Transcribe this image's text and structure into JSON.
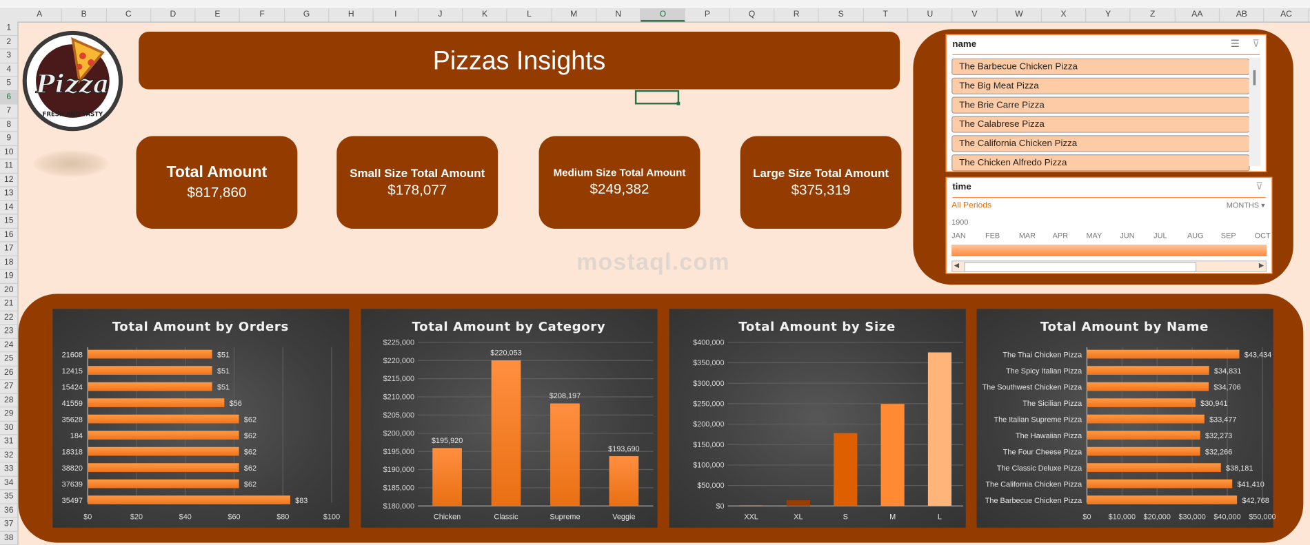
{
  "sheet": {
    "columns": [
      "A",
      "B",
      "C",
      "D",
      "E",
      "F",
      "G",
      "H",
      "I",
      "J",
      "K",
      "L",
      "M",
      "N",
      "O",
      "P",
      "Q",
      "R",
      "S",
      "T",
      "U",
      "V",
      "W",
      "X",
      "Y",
      "Z",
      "AA",
      "AB",
      "AC"
    ],
    "selected_column": "O",
    "rows": [
      1,
      2,
      3,
      4,
      5,
      6,
      7,
      8,
      9,
      10,
      11,
      12,
      13,
      14,
      15,
      16,
      17,
      18,
      19,
      20,
      21,
      22,
      23,
      24,
      25,
      26,
      27,
      28,
      29,
      30,
      31,
      32,
      33,
      34,
      35,
      36,
      37,
      38
    ],
    "selected_row": 6,
    "background_color": "#fee6d6",
    "accent_color": "#943c00"
  },
  "logo": {
    "text": "Pizza",
    "tagline": "FRESH AND TASTY"
  },
  "header": {
    "title": "Pizzas Insights"
  },
  "kpis": [
    {
      "label": "Total Amount",
      "value": "$817,860"
    },
    {
      "label": "Small Size Total Amount",
      "value": "$178,077"
    },
    {
      "label": "Medium Size Total Amount",
      "value": "$249,382"
    },
    {
      "label": "Large Size Total Amount",
      "value": "$375,319"
    }
  ],
  "slicers": {
    "name": {
      "title": "name",
      "multiselect_icon": "multi-select-icon",
      "clear_icon": "clear-filter-icon",
      "items": [
        "The Barbecue Chicken Pizza",
        "The Big Meat Pizza",
        "The Brie Carre Pizza",
        "The Calabrese Pizza",
        "The California Chicken Pizza",
        "The Chicken Alfredo Pizza"
      ]
    },
    "time": {
      "title": "time",
      "clear_icon": "clear-filter-icon",
      "period_label": "All Periods",
      "level": "MONTHS",
      "year": "1900",
      "months": [
        "JAN",
        "FEB",
        "MAR",
        "APR",
        "MAY",
        "JUN",
        "JUL",
        "AUG",
        "SEP",
        "OCT"
      ]
    }
  },
  "watermark": "mostaql.com",
  "chart_data": [
    {
      "type": "bar",
      "orientation": "horizontal",
      "title": "Total Amount by Orders",
      "categories": [
        "21608",
        "12415",
        "15424",
        "41559",
        "35628",
        "184",
        "18318",
        "38820",
        "37639",
        "35497"
      ],
      "values": [
        51,
        51,
        51,
        56,
        62,
        62,
        62,
        62,
        62,
        83
      ],
      "labels": [
        "$51",
        "$51",
        "$51",
        "$56",
        "$62",
        "$62",
        "$62",
        "$62",
        "$62",
        "$83"
      ],
      "xlim": [
        0,
        100
      ],
      "ticks": [
        "$0",
        "$20",
        "$40",
        "$60",
        "$80",
        "$100"
      ],
      "grid": true,
      "color": "#ff8a2a"
    },
    {
      "type": "bar",
      "orientation": "vertical",
      "title": "Total Amount by Category",
      "categories": [
        "Chicken",
        "Classic",
        "Supreme",
        "Veggie"
      ],
      "values": [
        195920,
        220053,
        208197,
        193690
      ],
      "labels": [
        "$195,920",
        "$220,053",
        "$208,197",
        "$193,690"
      ],
      "ylim": [
        180000,
        225000
      ],
      "ticks": [
        "$180,000",
        "$185,000",
        "$190,000",
        "$195,000",
        "$200,000",
        "$205,000",
        "$210,000",
        "$215,000",
        "$220,000",
        "$225,000"
      ],
      "grid": true,
      "color": "#ff8a2a"
    },
    {
      "type": "bar",
      "orientation": "vertical",
      "title": "Total Amount by Size",
      "categories": [
        "XXL",
        "XL",
        "S",
        "M",
        "L"
      ],
      "values": [
        1006,
        14076,
        178077,
        249382,
        375319
      ],
      "colors": [
        "#ffb47a",
        "#9a3d00",
        "#dd5f00",
        "#ff8a33",
        "#ffb47a"
      ],
      "ylim": [
        0,
        400000
      ],
      "ticks": [
        "$0",
        "$50,000",
        "$100,000",
        "$150,000",
        "$200,000",
        "$250,000",
        "$300,000",
        "$350,000",
        "$400,000"
      ],
      "grid": true
    },
    {
      "type": "bar",
      "orientation": "horizontal",
      "title": "Total Amount by Name",
      "categories": [
        "The Thai Chicken Pizza",
        "The Spicy Italian Pizza",
        "The Southwest Chicken Pizza",
        "The Sicilian Pizza",
        "The Italian Supreme Pizza",
        "The Hawaiian Pizza",
        "The Four Cheese Pizza",
        "The Classic Deluxe Pizza",
        "The California Chicken Pizza",
        "The Barbecue Chicken Pizza"
      ],
      "values": [
        43434,
        34831,
        34706,
        30941,
        33477,
        32273,
        32266,
        38181,
        41410,
        42768
      ],
      "labels": [
        "$43,434",
        "$34,831",
        "$34,706",
        "$30,941",
        "$33,477",
        "$32,273",
        "$32,266",
        "$38,181",
        "$41,410",
        "$42,768"
      ],
      "xlim": [
        0,
        50000
      ],
      "ticks": [
        "$0",
        "$10,000",
        "$20,000",
        "$30,000",
        "$40,000",
        "$50,000"
      ],
      "grid": true,
      "color": "#ff8a2a"
    }
  ]
}
